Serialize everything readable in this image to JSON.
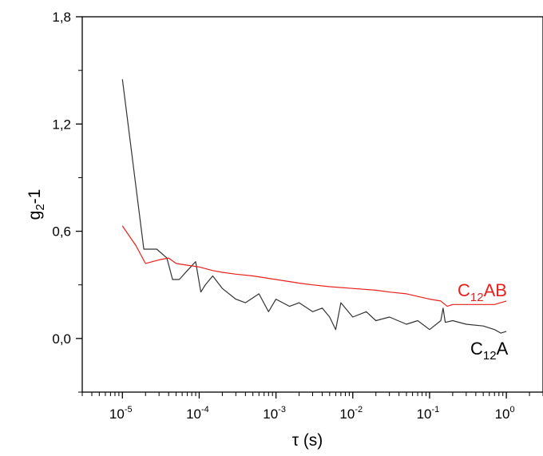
{
  "chart_data": {
    "type": "line",
    "xlabel": "τ (s)",
    "ylabel": "g2-1",
    "ylabel_parts": {
      "base": "g",
      "sub": "2",
      "rest": "-1"
    },
    "xscale": "log",
    "xlim": [
      3e-06,
      3
    ],
    "ylim": [
      -0.3,
      1.8
    ],
    "grid": false,
    "legend": "inline labels next to curves",
    "x_ticks": [
      {
        "base": "10",
        "exp": "-5"
      },
      {
        "base": "10",
        "exp": "-4"
      },
      {
        "base": "10",
        "exp": "-3"
      },
      {
        "base": "10",
        "exp": "-2"
      },
      {
        "base": "10",
        "exp": "-1"
      },
      {
        "base": "10",
        "exp": "0"
      }
    ],
    "y_ticks": [
      "0,0",
      "0,6",
      "1,2",
      "1,8"
    ],
    "y_tick_values": [
      0.0,
      0.6,
      1.2,
      1.8
    ],
    "series": [
      {
        "name": "C12A",
        "label_parts": {
          "base": "C",
          "sub": "12",
          "rest": "A"
        },
        "color": "#333333",
        "x": [
          1e-05,
          1.9e-05,
          2.8e-05,
          3.8e-05,
          4.5e-05,
          5.5e-05,
          7e-05,
          9e-05,
          0.000105,
          0.00012,
          0.00015,
          0.0002,
          0.0003,
          0.0004,
          0.0006,
          0.0008,
          0.001,
          0.0015,
          0.002,
          0.003,
          0.004,
          0.005,
          0.006,
          0.007,
          0.01,
          0.015,
          0.02,
          0.03,
          0.05,
          0.07,
          0.1,
          0.14,
          0.15,
          0.16,
          0.2,
          0.3,
          0.5,
          0.7,
          0.85,
          1
        ],
        "y": [
          1.45,
          0.5,
          0.5,
          0.45,
          0.33,
          0.33,
          0.38,
          0.43,
          0.26,
          0.3,
          0.35,
          0.28,
          0.22,
          0.2,
          0.25,
          0.15,
          0.22,
          0.18,
          0.2,
          0.15,
          0.17,
          0.12,
          0.05,
          0.2,
          0.12,
          0.15,
          0.1,
          0.12,
          0.08,
          0.1,
          0.05,
          0.1,
          0.17,
          0.09,
          0.1,
          0.08,
          0.07,
          0.05,
          0.03,
          0.04
        ]
      },
      {
        "name": "C12AB",
        "label_parts": {
          "base": "C",
          "sub": "12",
          "rest": "AB"
        },
        "color": "#e8201b",
        "x": [
          1e-05,
          1.5e-05,
          2e-05,
          3e-05,
          4e-05,
          5e-05,
          7e-05,
          0.0001,
          0.00015,
          0.0002,
          0.0003,
          0.0005,
          0.001,
          0.002,
          0.003,
          0.005,
          0.01,
          0.02,
          0.03,
          0.05,
          0.1,
          0.14,
          0.17,
          0.2,
          0.3,
          0.5,
          0.7,
          1
        ],
        "y": [
          0.63,
          0.52,
          0.42,
          0.44,
          0.45,
          0.42,
          0.41,
          0.4,
          0.38,
          0.37,
          0.36,
          0.35,
          0.33,
          0.31,
          0.3,
          0.29,
          0.28,
          0.27,
          0.26,
          0.25,
          0.22,
          0.21,
          0.18,
          0.19,
          0.19,
          0.19,
          0.19,
          0.21
        ]
      }
    ]
  }
}
